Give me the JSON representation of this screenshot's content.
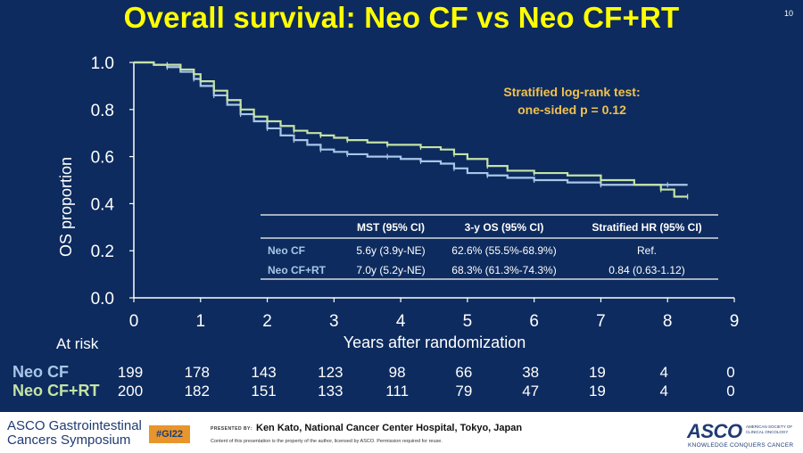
{
  "slide": {
    "title": "Overall survival: Neo CF vs Neo CF+RT",
    "number": "10"
  },
  "chart_data": {
    "type": "line",
    "subtype": "kaplan-meier",
    "xlabel": "Years after randomization",
    "ylabel": "OS proportion",
    "xlim": [
      0,
      9
    ],
    "ylim": [
      0,
      1.0
    ],
    "x_ticks": [
      "0",
      "1",
      "2",
      "3",
      "4",
      "5",
      "6",
      "7",
      "8",
      "9"
    ],
    "y_ticks": [
      "0.0",
      "0.2",
      "0.4",
      "0.6",
      "0.8",
      "1.0"
    ],
    "grid": false,
    "annotation": [
      "Stratified log-rank test:",
      "one-sided p = 0.12"
    ],
    "series": [
      {
        "name": "Neo CF",
        "color": "#a9c6e8",
        "points": [
          [
            0,
            1.0
          ],
          [
            0.3,
            0.99
          ],
          [
            0.5,
            0.98
          ],
          [
            0.7,
            0.96
          ],
          [
            0.9,
            0.93
          ],
          [
            1.0,
            0.9
          ],
          [
            1.2,
            0.86
          ],
          [
            1.4,
            0.82
          ],
          [
            1.6,
            0.78
          ],
          [
            1.8,
            0.75
          ],
          [
            2.0,
            0.72
          ],
          [
            2.2,
            0.69
          ],
          [
            2.4,
            0.67
          ],
          [
            2.6,
            0.65
          ],
          [
            2.8,
            0.63
          ],
          [
            3.0,
            0.62
          ],
          [
            3.2,
            0.61
          ],
          [
            3.5,
            0.6
          ],
          [
            3.8,
            0.6
          ],
          [
            4.0,
            0.59
          ],
          [
            4.3,
            0.58
          ],
          [
            4.6,
            0.57
          ],
          [
            4.8,
            0.55
          ],
          [
            5.0,
            0.53
          ],
          [
            5.3,
            0.52
          ],
          [
            5.6,
            0.51
          ],
          [
            6.0,
            0.5
          ],
          [
            6.5,
            0.49
          ],
          [
            7.0,
            0.48
          ],
          [
            7.5,
            0.48
          ],
          [
            8.0,
            0.48
          ],
          [
            8.3,
            0.48
          ]
        ]
      },
      {
        "name": "Neo CF+RT",
        "color": "#c5e3a5",
        "points": [
          [
            0,
            1.0
          ],
          [
            0.3,
            0.99
          ],
          [
            0.5,
            0.99
          ],
          [
            0.7,
            0.97
          ],
          [
            0.9,
            0.95
          ],
          [
            1.0,
            0.92
          ],
          [
            1.2,
            0.88
          ],
          [
            1.4,
            0.84
          ],
          [
            1.6,
            0.8
          ],
          [
            1.8,
            0.77
          ],
          [
            2.0,
            0.75
          ],
          [
            2.2,
            0.73
          ],
          [
            2.4,
            0.71
          ],
          [
            2.6,
            0.7
          ],
          [
            2.8,
            0.69
          ],
          [
            3.0,
            0.68
          ],
          [
            3.2,
            0.67
          ],
          [
            3.5,
            0.66
          ],
          [
            3.8,
            0.65
          ],
          [
            4.0,
            0.65
          ],
          [
            4.3,
            0.64
          ],
          [
            4.6,
            0.63
          ],
          [
            4.8,
            0.61
          ],
          [
            5.0,
            0.59
          ],
          [
            5.3,
            0.56
          ],
          [
            5.6,
            0.54
          ],
          [
            6.0,
            0.53
          ],
          [
            6.5,
            0.52
          ],
          [
            7.0,
            0.5
          ],
          [
            7.5,
            0.48
          ],
          [
            7.9,
            0.46
          ],
          [
            8.1,
            0.43
          ],
          [
            8.3,
            0.43
          ]
        ]
      }
    ],
    "at_risk": {
      "label": "At risk",
      "rows": [
        {
          "name": "Neo CF",
          "color": "#a9c6e8",
          "values": [
            "199",
            "178",
            "143",
            "123",
            "98",
            "66",
            "38",
            "19",
            "4",
            "0"
          ]
        },
        {
          "name": "Neo CF+RT",
          "color": "#c5e3a5",
          "values": [
            "200",
            "182",
            "151",
            "133",
            "111",
            "79",
            "47",
            "19",
            "4",
            "0"
          ]
        }
      ]
    },
    "table": {
      "headers": [
        "",
        "MST (95% CI)",
        "3-y OS (95% CI)",
        "Stratified HR (95% CI)"
      ],
      "rows": [
        [
          "Neo CF",
          "5.6y (3.9y-NE)",
          "62.6% (55.5%-68.9%)",
          "Ref."
        ],
        [
          "Neo CF+RT",
          "7.0y (5.2y-NE)",
          "68.3% (61.3%-74.3%)",
          "0.84 (0.63-1.12)"
        ]
      ]
    }
  },
  "footer": {
    "symposium_line1": "ASCO Gastrointestinal",
    "symposium_line2": "Cancers Symposium",
    "hashtag": "#GI22",
    "presented_by": "PRESENTED BY:",
    "presenter": "Ken Kato, National Cancer Center Hospital, Tokyo, Japan",
    "copyright": "Content of this presentation is the property of the author, licensed by ASCO. Permission required for reuse.",
    "asco_logo": "ASCO",
    "asco_society": "AMERICAN SOCIETY OF CLINICAL ONCOLOGY",
    "asco_tagline": "KNOWLEDGE CONQUERS CANCER"
  }
}
